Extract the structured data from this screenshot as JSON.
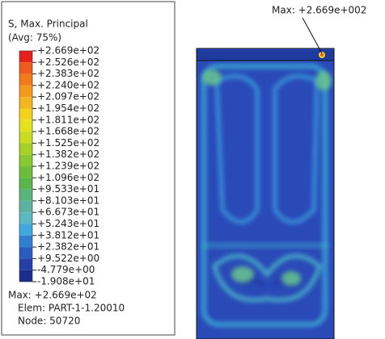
{
  "legend": {
    "title": [
      "S, Max. Principal",
      "(Avg: 75%)"
    ],
    "levels": [
      "+2.669e+02",
      "+2.526e+02",
      "+2.383e+02",
      "+2.240e+02",
      "+2.097e+02",
      "+1.954e+02",
      "+1.811e+02",
      "+1.668e+02",
      "+1.525e+02",
      "+1.382e+02",
      "+1.239e+02",
      "+1.096e+02",
      "+9.533e+01",
      "+8.103e+01",
      "+6.673e+01",
      "+5.243e+01",
      "+3.812e+01",
      "+2.382e+01",
      "+9.522e+00",
      "-4.779e+00",
      "-1.908e+01"
    ],
    "colors": [
      "#e8201c",
      "#f05a1a",
      "#f27a1a",
      "#f39a1c",
      "#f4b61e",
      "#f2d21e",
      "#e4e21e",
      "#c8dc22",
      "#a6d228",
      "#88c830",
      "#6cbe3a",
      "#5ab54a",
      "#58b47a",
      "#5cb4a0",
      "#5cb8c0",
      "#40a8dc",
      "#2f7fd0",
      "#2a5cc0",
      "#2440a8",
      "#1c2c8c"
    ],
    "footer": [
      "Max: +2.669e+02",
      "Elem: PART-1-1.20010",
      "Node: 50720"
    ]
  },
  "annotation": "Max: +2.669e+002"
}
